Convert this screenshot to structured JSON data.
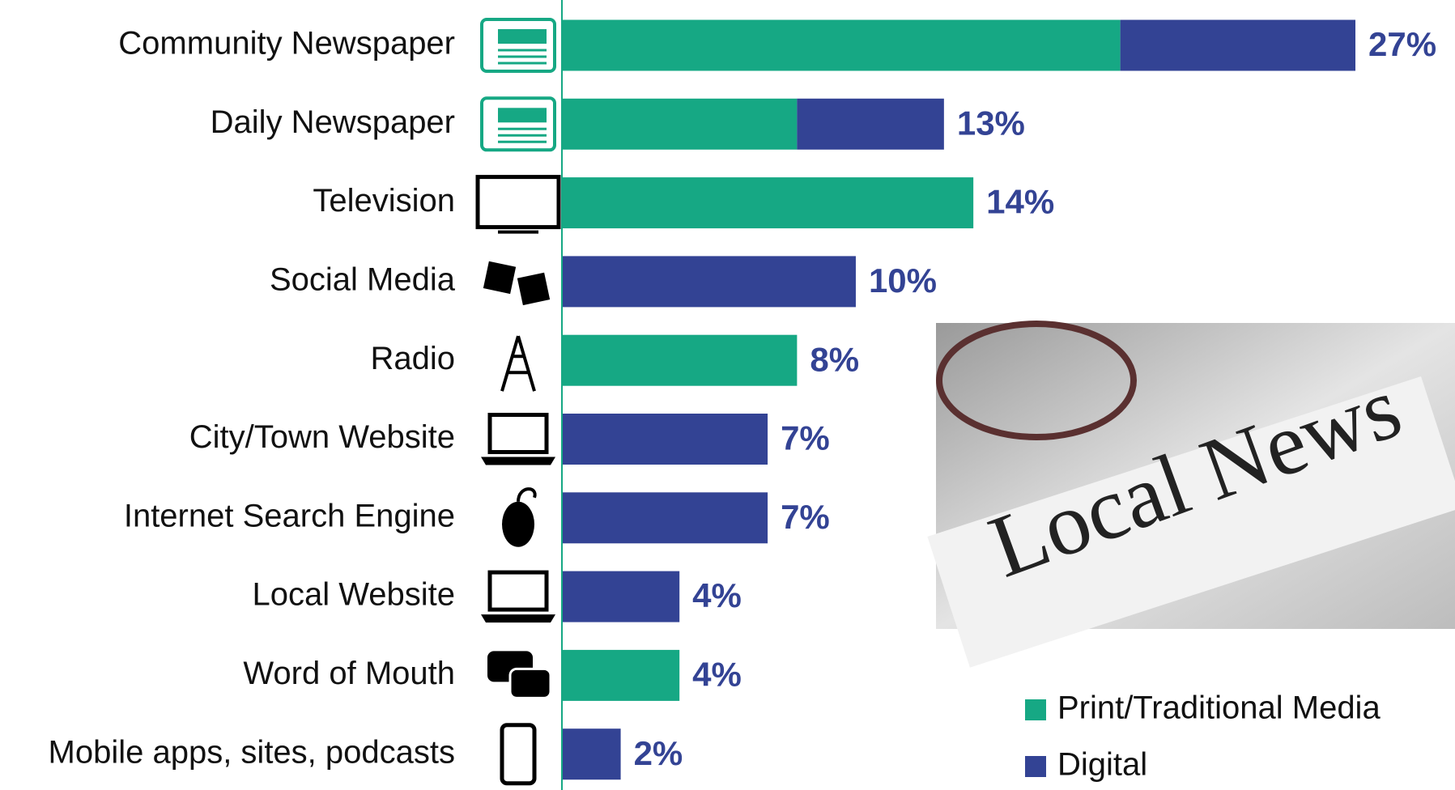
{
  "chart_data": {
    "type": "stacked-barh",
    "categories": [
      "Community Newspaper",
      "Daily Newspaper",
      "Television",
      "Social Media",
      "Radio",
      "City/Town Website",
      "Internet Search Engine",
      "Local Website",
      "Word of Mouth",
      "Mobile apps, sites, podcasts"
    ],
    "series": [
      {
        "name": "Print/Traditional Media",
        "color": "#16a884",
        "values": [
          19,
          8,
          14,
          0,
          8,
          0,
          0,
          0,
          4,
          0
        ]
      },
      {
        "name": "Digital",
        "color": "#334394",
        "values": [
          8,
          5,
          0,
          10,
          0,
          7,
          7,
          4,
          0,
          2
        ]
      }
    ],
    "totals": [
      27,
      13,
      14,
      10,
      8,
      7,
      7,
      4,
      4,
      2
    ],
    "total_labels": [
      "27%",
      "13%",
      "14%",
      "10%",
      "8%",
      "7%",
      "7%",
      "4%",
      "4%",
      "2%"
    ],
    "xlim": [
      0,
      27
    ],
    "photo": {
      "headline": "Local News"
    }
  }
}
